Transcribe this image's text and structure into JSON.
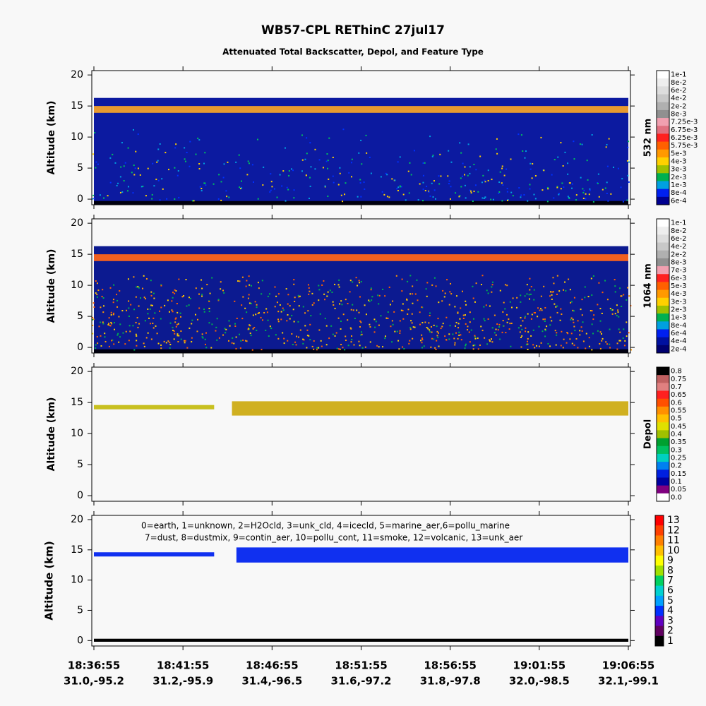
{
  "title": "WB57-CPL REThinC 27jul17",
  "subtitle": "Attenuated Total Backscatter, Depol, and Feature Type",
  "x_axis": {
    "times": [
      "18:36:55",
      "18:41:55",
      "18:46:55",
      "18:51:55",
      "18:56:55",
      "19:01:55",
      "19:06:55"
    ],
    "positions": [
      "31.0,-95.2",
      "31.2,-95.9",
      "31.4,-96.5",
      "31.6,-97.2",
      "31.8,-97.8",
      "32.0,-98.5",
      "32.1,-99.1"
    ]
  },
  "chart_data": [
    {
      "type": "backscatter",
      "ylabel": "Altitude (km)",
      "ylim": [
        -0.9,
        20.7
      ],
      "yticks": [
        0,
        5,
        10,
        15,
        20
      ],
      "layers": [
        {
          "x": [
            0,
            6
          ],
          "base": -0.9,
          "top": 16.3,
          "color": "#0c1aa0"
        },
        {
          "x": [
            0,
            6
          ],
          "base": 13.9,
          "top": 15.0,
          "color": "#e89a30"
        },
        {
          "x": [
            0,
            6
          ],
          "base": -0.9,
          "top": -0.3,
          "color": "#000010"
        }
      ],
      "colorbar": {
        "label": "532 nm",
        "ticks": [
          "1e-1",
          "8e-2",
          "6e-2",
          "4e-2",
          "2e-2",
          "8e-3",
          "7.25e-3",
          "6.75e-3",
          "6.25e-3",
          "5.75e-3",
          "5e-3",
          "4e-3",
          "3e-3",
          "2e-3",
          "1e-3",
          "8e-4",
          "6e-4"
        ],
        "colors": [
          "#ffffff",
          "#eeeeee",
          "#dddddd",
          "#c8c8c8",
          "#b0b0b0",
          "#909090",
          "#f0a0b0",
          "#e07080",
          "#ff2020",
          "#ff6000",
          "#ff9900",
          "#ffd000",
          "#a0c000",
          "#00b050",
          "#00a0e0",
          "#0020f0",
          "#000090"
        ]
      }
    },
    {
      "type": "backscatter",
      "ylabel": "Altitude (km)",
      "ylim": [
        -0.9,
        20.7
      ],
      "yticks": [
        0,
        5,
        10,
        15,
        20
      ],
      "layers": [
        {
          "x": [
            0,
            6
          ],
          "base": -0.9,
          "top": 16.3,
          "color": "#0c1a90"
        },
        {
          "x": [
            0,
            6
          ],
          "base": 13.9,
          "top": 15.0,
          "color": "#f06020"
        },
        {
          "x": [
            0,
            6
          ],
          "base": -0.9,
          "top": -0.3,
          "color": "#000010"
        }
      ],
      "colorbar": {
        "label": "1064 nm",
        "ticks": [
          "1e-1",
          "8e-2",
          "6e-2",
          "4e-2",
          "2e-2",
          "8e-3",
          "7e-3",
          "6e-3",
          "5e-3",
          "4e-3",
          "3e-3",
          "2e-3",
          "1e-3",
          "8e-4",
          "6e-4",
          "4e-4",
          "2e-4"
        ],
        "colors": [
          "#ffffff",
          "#eeeeee",
          "#dddddd",
          "#c8c8c8",
          "#b0b0b0",
          "#909090",
          "#f0a0b0",
          "#ff2020",
          "#ff6000",
          "#ff9900",
          "#ffd000",
          "#a0c000",
          "#00b050",
          "#00a0e0",
          "#0020f0",
          "#0010a0",
          "#000070"
        ]
      }
    },
    {
      "type": "depol",
      "ylabel": "Altitude (km)",
      "ylim": [
        -0.9,
        20.7
      ],
      "yticks": [
        0,
        5,
        10,
        15,
        20
      ],
      "layers": [
        {
          "x": [
            0,
            1.35
          ],
          "base": 13.9,
          "top": 14.6,
          "color": "#c8c020"
        },
        {
          "x": [
            1.55,
            6
          ],
          "base": 12.9,
          "top": 15.2,
          "color": "#d0b020"
        }
      ],
      "colorbar": {
        "label": "Depol",
        "ticks": [
          0.8,
          0.75,
          0.7,
          0.65,
          0.6,
          0.55,
          0.5,
          0.45,
          0.4,
          0.35,
          0.3,
          0.25,
          0.2,
          0.15,
          0.1,
          0.05,
          {
            "value": 0,
            "label": "0.0"
          }
        ],
        "colors": [
          "#000000",
          "#c06060",
          "#e08080",
          "#ff2020",
          "#ff5000",
          "#ff9000",
          "#ffc000",
          "#e0e000",
          "#a0c000",
          "#00a030",
          "#00c060",
          "#00d0c0",
          "#0080f0",
          "#0020e0",
          "#0000a0",
          "#800080",
          "#ffffff"
        ]
      }
    },
    {
      "type": "feature",
      "ylabel": "Altitude (km)",
      "ylim": [
        -0.9,
        20.7
      ],
      "yticks": [
        0,
        5,
        10,
        15,
        20
      ],
      "annotations": [
        "0=earth, 1=unknown, 2=H2Ocld, 3=unk_cld, 4=icecld, 5=marine_aer,6=pollu_marine",
        "7=dust, 8=dustmix, 9=contin_aer, 10=pollu_cont, 11=smoke, 12=volcanic, 13=unk_aer"
      ],
      "layers": [
        {
          "x": [
            0,
            1.35
          ],
          "base": 13.9,
          "top": 14.6,
          "color": "#1030f0"
        },
        {
          "x": [
            1.6,
            6
          ],
          "base": 12.9,
          "top": 15.4,
          "color": "#1030f0"
        },
        {
          "x": [
            0,
            6
          ],
          "base": -0.2,
          "top": 0.3,
          "color": "#000000"
        }
      ],
      "colorbar": {
        "ticks": [
          13,
          12,
          11,
          10,
          9,
          8,
          7,
          6,
          5,
          4,
          3,
          2,
          1
        ],
        "colors": [
          "#ff0000",
          "#ff4000",
          "#ff8000",
          "#ffc000",
          "#ffff00",
          "#a0e000",
          "#00d060",
          "#00d0d0",
          "#00a0ff",
          "#0030ff",
          "#6000c0",
          "#600060",
          "#000000"
        ]
      }
    }
  ]
}
